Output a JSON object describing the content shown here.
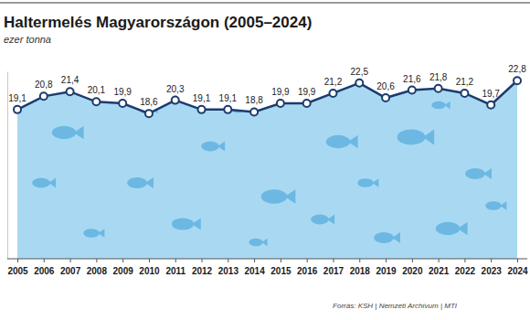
{
  "chart_data": {
    "type": "line",
    "title": "Haltermelés Magyarországon (2005–2024)",
    "subtitle": "ezer tonna",
    "source": "Forrás: KSH | Nemzeti Archívum | MTI",
    "categories": [
      "2005",
      "2006",
      "2007",
      "2008",
      "2009",
      "2010",
      "2011",
      "2012",
      "2013",
      "2014",
      "2015",
      "2016",
      "2017",
      "2018",
      "2019",
      "2020",
      "2021",
      "2022",
      "2023",
      "2024"
    ],
    "values": [
      19.1,
      20.8,
      21.4,
      20.1,
      19.9,
      18.6,
      20.3,
      19.1,
      19.1,
      18.8,
      19.9,
      19.9,
      21.2,
      22.5,
      20.6,
      21.6,
      21.8,
      21.2,
      19.7,
      22.8
    ],
    "value_labels": [
      "19,1",
      "20,8",
      "21,4",
      "20,1",
      "19,9",
      "18,6",
      "20,3",
      "19,1",
      "19,1",
      "18,8",
      "19,9",
      "19,9",
      "21,2",
      "22,5",
      "20,6",
      "21,6",
      "21,8",
      "21,2",
      "19,7",
      "22,8"
    ],
    "color": "#1d3b6e",
    "marker": "circle",
    "data_labels": true,
    "grid": false,
    "tick_labels": "x",
    "ylim": [
      0,
      24
    ]
  }
}
